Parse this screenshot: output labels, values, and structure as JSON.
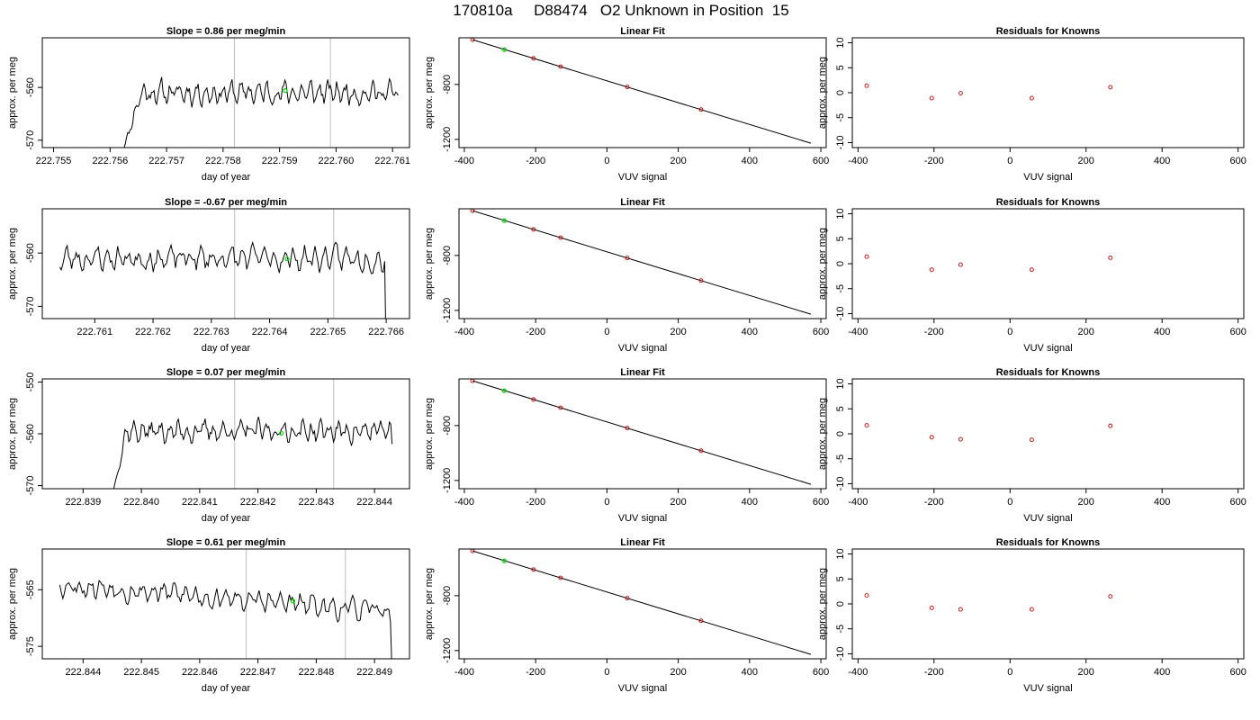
{
  "suptitle": "170810a     D88474   O2 Unknown in Position  15",
  "colors": {
    "trace": "#000000",
    "marker": "#00dd00",
    "vline": "#bebebe",
    "point": "#cc0000",
    "frame": "#000000"
  },
  "chart_data": [
    {
      "type": "line",
      "row": 0,
      "title": "Slope =  0.86  per meg/min",
      "xlabel": "day of year",
      "ylabel": "approx. per meg",
      "xlim": [
        222.7548,
        222.7613
      ],
      "ylim": [
        -571.4,
        -550.6
      ],
      "xticks": [
        222.755,
        222.756,
        222.757,
        222.758,
        222.759,
        222.76,
        222.761
      ],
      "xtick_labels": [
        "222.755",
        "222.756",
        "222.757",
        "222.758",
        "222.759",
        "222.760",
        "222.761"
      ],
      "yticks": [
        -570,
        -560
      ],
      "ytick_labels": [
        "-570",
        "-560"
      ],
      "series": [
        {
          "x0": 222.7562,
          "x1": 222.7611,
          "y_start": -573,
          "y_end": -561.5,
          "level": -561.0,
          "noise": 2.2,
          "seed": 11,
          "rise_frac": 0.07
        }
      ],
      "vlines": [
        222.7582,
        222.7599
      ],
      "marker": {
        "x": 222.7591,
        "y": -560.6
      }
    },
    {
      "type": "scatter",
      "row": 0,
      "title": "Linear Fit",
      "xlabel": "VUV signal",
      "ylabel": "approx. per meg",
      "xlim": [
        -415,
        615
      ],
      "ylim": [
        -1260,
        -460
      ],
      "xticks": [
        -400,
        -200,
        0,
        200,
        400,
        600
      ],
      "xtick_labels": [
        "-400",
        "-200",
        "0",
        "200",
        "400",
        "600"
      ],
      "yticks": [
        -1200,
        -800
      ],
      "ytick_labels": [
        "-1200",
        "-800"
      ],
      "fit_line": {
        "x": [
          -377,
          572
        ],
        "y": [
          -474,
          -1228
        ]
      },
      "points": {
        "x": [
          -377,
          -206,
          -130,
          57,
          264
        ],
        "y": [
          -474,
          -610,
          -670,
          -818,
          -983
        ]
      },
      "unknown": {
        "x": -288,
        "y": -546
      }
    },
    {
      "type": "scatter",
      "row": 0,
      "title": "Residuals for Knowns",
      "xlabel": "VUV signal",
      "ylabel": "approx. per meg",
      "xlim": [
        -415,
        615
      ],
      "ylim": [
        -11,
        11
      ],
      "xticks": [
        -400,
        -200,
        0,
        200,
        400,
        600
      ],
      "xtick_labels": [
        "-400",
        "-200",
        "0",
        "200",
        "400",
        "600"
      ],
      "yticks": [
        -10,
        -5,
        0,
        5,
        10
      ],
      "ytick_labels": [
        "-10",
        "-5",
        "0",
        "5",
        "10"
      ],
      "points": {
        "x": [
          -377,
          -206,
          -130,
          57,
          264
        ],
        "y": [
          1.4,
          -1.1,
          -0.1,
          -1.1,
          1.1
        ]
      }
    },
    {
      "type": "line",
      "row": 1,
      "title": "Slope =  -0.67  per meg/min",
      "xlabel": "day of year",
      "ylabel": "approx. per meg",
      "xlim": [
        222.7601,
        222.7664
      ],
      "ylim": [
        -572.3,
        -551.7
      ],
      "xticks": [
        222.761,
        222.762,
        222.763,
        222.764,
        222.765,
        222.766
      ],
      "xtick_labels": [
        "222.761",
        "222.762",
        "222.763",
        "222.764",
        "222.765",
        "222.766"
      ],
      "yticks": [
        -570,
        -560
      ],
      "ytick_labels": [
        "-570",
        "-560"
      ],
      "series": [
        {
          "x0": 222.7604,
          "x1": 222.766,
          "y_start": -562.8,
          "y_end": -580,
          "level": -561.0,
          "noise": 2.3,
          "seed": 23,
          "rise_frac": 0.0
        }
      ],
      "vlines": [
        222.7634,
        222.7651
      ],
      "marker": {
        "x": 222.7643,
        "y": -561.1
      }
    },
    {
      "type": "scatter",
      "row": 1,
      "title": "Linear Fit",
      "xlabel": "VUV signal",
      "ylabel": "approx. per meg",
      "xlim": [
        -415,
        615
      ],
      "ylim": [
        -1260,
        -460
      ],
      "xticks": [
        -400,
        -200,
        0,
        200,
        400,
        600
      ],
      "xtick_labels": [
        "-400",
        "-200",
        "0",
        "200",
        "400",
        "600"
      ],
      "yticks": [
        -1200,
        -800
      ],
      "ytick_labels": [
        "-1200",
        "-800"
      ],
      "fit_line": {
        "x": [
          -377,
          572
        ],
        "y": [
          -474,
          -1228
        ]
      },
      "points": {
        "x": [
          -377,
          -206,
          -130,
          57,
          264
        ],
        "y": [
          -474,
          -610,
          -670,
          -818,
          -983
        ]
      },
      "unknown": {
        "x": -288,
        "y": -546
      }
    },
    {
      "type": "scatter",
      "row": 1,
      "title": "Residuals for Knowns",
      "xlabel": "VUV signal",
      "ylabel": "approx. per meg",
      "xlim": [
        -415,
        615
      ],
      "ylim": [
        -11,
        11
      ],
      "xticks": [
        -400,
        -200,
        0,
        200,
        400,
        600
      ],
      "xtick_labels": [
        "-400",
        "-200",
        "0",
        "200",
        "400",
        "600"
      ],
      "yticks": [
        -10,
        -5,
        0,
        5,
        10
      ],
      "ytick_labels": [
        "-10",
        "-5",
        "0",
        "5",
        "10"
      ],
      "points": {
        "x": [
          -377,
          -206,
          -130,
          57,
          264
        ],
        "y": [
          1.4,
          -1.2,
          -0.2,
          -1.2,
          1.2
        ]
      }
    },
    {
      "type": "line",
      "row": 2,
      "title": "Slope =  0.07  per meg/min",
      "xlabel": "day of year",
      "ylabel": "approx. per meg",
      "xlim": [
        222.8383,
        222.8446
      ],
      "ylim": [
        -570.6,
        -549.4
      ],
      "xticks": [
        222.839,
        222.84,
        222.841,
        222.842,
        222.843,
        222.844
      ],
      "xtick_labels": [
        "222.839",
        "222.840",
        "222.841",
        "222.842",
        "222.843",
        "222.844"
      ],
      "yticks": [
        -570,
        -560,
        -550
      ],
      "ytick_labels": [
        "-570",
        "-560",
        "-550"
      ],
      "series": [
        {
          "x0": 222.8395,
          "x1": 222.8443,
          "y_start": -572,
          "y_end": -562,
          "level": -559.5,
          "noise": 2.1,
          "seed": 37,
          "rise_frac": 0.05
        }
      ],
      "vlines": [
        222.8416,
        222.8433
      ],
      "marker": {
        "x": 222.8424,
        "y": -559.9
      }
    },
    {
      "type": "scatter",
      "row": 2,
      "title": "Linear Fit",
      "xlabel": "VUV signal",
      "ylabel": "approx. per meg",
      "xlim": [
        -415,
        615
      ],
      "ylim": [
        -1260,
        -460
      ],
      "xticks": [
        -400,
        -200,
        0,
        200,
        400,
        600
      ],
      "xtick_labels": [
        "-400",
        "-200",
        "0",
        "200",
        "400",
        "600"
      ],
      "yticks": [
        -1200,
        -800
      ],
      "ytick_labels": [
        "-1200",
        "-800"
      ],
      "fit_line": {
        "x": [
          -377,
          572
        ],
        "y": [
          -474,
          -1228
        ]
      },
      "points": {
        "x": [
          -377,
          -206,
          -130,
          57,
          264
        ],
        "y": [
          -474,
          -610,
          -670,
          -818,
          -983
        ]
      },
      "unknown": {
        "x": -288,
        "y": -546
      }
    },
    {
      "type": "scatter",
      "row": 2,
      "title": "Residuals for Knowns",
      "xlabel": "VUV signal",
      "ylabel": "approx. per meg",
      "xlim": [
        -415,
        615
      ],
      "ylim": [
        -11,
        11
      ],
      "xticks": [
        -400,
        -200,
        0,
        200,
        400,
        600
      ],
      "xtick_labels": [
        "-400",
        "-200",
        "0",
        "200",
        "400",
        "600"
      ],
      "yticks": [
        -10,
        -5,
        0,
        5,
        10
      ],
      "ytick_labels": [
        "-10",
        "-5",
        "0",
        "5",
        "10"
      ],
      "points": {
        "x": [
          -377,
          -206,
          -130,
          57,
          264
        ],
        "y": [
          1.7,
          -0.7,
          -1.1,
          -1.2,
          1.6
        ]
      }
    },
    {
      "type": "line",
      "row": 3,
      "title": "Slope =  0.61  per meg/min",
      "xlabel": "day of year",
      "ylabel": "approx. per meg",
      "xlim": [
        222.8433,
        222.8496
      ],
      "ylim": [
        -577.2,
        -557.8
      ],
      "xticks": [
        222.844,
        222.845,
        222.846,
        222.847,
        222.848,
        222.849
      ],
      "xtick_labels": [
        "222.844",
        "222.845",
        "222.846",
        "222.847",
        "222.848",
        "222.849"
      ],
      "yticks": [
        -575,
        -565
      ],
      "ytick_labels": [
        "-575",
        "-565"
      ],
      "series": [
        {
          "x0": 222.8436,
          "x1": 222.8493,
          "y_start": -562.5,
          "y_end": -580,
          "level": -566.5,
          "noise": 2.0,
          "seed": 53,
          "rise_frac": 0.0,
          "trend": 5.0
        }
      ],
      "vlines": [
        222.8468,
        222.8485
      ],
      "marker": {
        "x": 222.8476,
        "y": -567.0
      }
    },
    {
      "type": "scatter",
      "row": 3,
      "title": "Linear Fit",
      "xlabel": "VUV signal",
      "ylabel": "approx. per meg",
      "xlim": [
        -415,
        615
      ],
      "ylim": [
        -1260,
        -460
      ],
      "xticks": [
        -400,
        -200,
        0,
        200,
        400,
        600
      ],
      "xtick_labels": [
        "-400",
        "-200",
        "0",
        "200",
        "400",
        "600"
      ],
      "yticks": [
        -1200,
        -800
      ],
      "ytick_labels": [
        "-1200",
        "-800"
      ],
      "fit_line": {
        "x": [
          -377,
          572
        ],
        "y": [
          -474,
          -1228
        ]
      },
      "points": {
        "x": [
          -377,
          -206,
          -130,
          57,
          264
        ],
        "y": [
          -474,
          -610,
          -670,
          -818,
          -983
        ]
      },
      "unknown": {
        "x": -288,
        "y": -546
      }
    },
    {
      "type": "scatter",
      "row": 3,
      "title": "Residuals for Knowns",
      "xlabel": "VUV signal",
      "ylabel": "approx. per meg",
      "xlim": [
        -415,
        615
      ],
      "ylim": [
        -11,
        11
      ],
      "xticks": [
        -400,
        -200,
        0,
        200,
        400,
        600
      ],
      "xtick_labels": [
        "-400",
        "-200",
        "0",
        "200",
        "400",
        "600"
      ],
      "yticks": [
        -10,
        -5,
        0,
        5,
        10
      ],
      "ytick_labels": [
        "-10",
        "-5",
        "0",
        "5",
        "10"
      ],
      "points": {
        "x": [
          -377,
          -206,
          -130,
          57,
          264
        ],
        "y": [
          1.7,
          -0.8,
          -1.1,
          -1.1,
          1.5
        ]
      }
    }
  ]
}
